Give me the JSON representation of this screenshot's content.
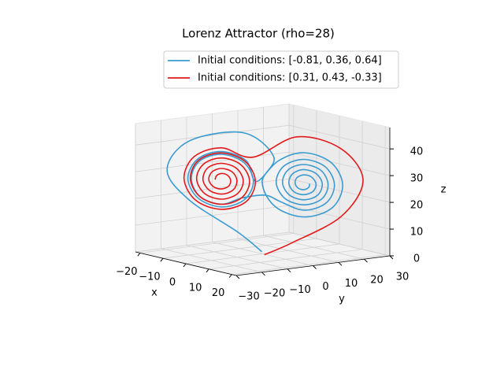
{
  "chart_data": {
    "type": "line3d",
    "title": "Lorenz Attractor (rho=28)",
    "xlabel": "x",
    "ylabel": "y",
    "zlabel": "z",
    "xlim": [
      -22,
      22
    ],
    "ylim": [
      -30,
      30
    ],
    "zlim": [
      0,
      48
    ],
    "xticks": [
      {
        "value": -20,
        "label": "−20"
      },
      {
        "value": -10,
        "label": "−10"
      },
      0,
      10,
      20
    ],
    "yticks": [
      {
        "value": -30,
        "label": "−30"
      },
      {
        "value": -20,
        "label": "−20"
      },
      {
        "value": -10,
        "label": "−10"
      },
      0,
      10,
      20,
      30
    ],
    "zticks": [
      0,
      10,
      20,
      30,
      40
    ],
    "grid": true,
    "legend": "upper center",
    "series": [
      {
        "name": "Initial conditions: [-0.81, 0.36, 0.64]",
        "color": "#3a9bd0",
        "x": [
          -0.8,
          -4,
          -12,
          -16,
          -12,
          -4,
          2.3,
          -0.1,
          2.5,
          8.5,
          14.3,
          16.5,
          14.1,
          8.5,
          3.2,
          -1.3,
          -3.4,
          -8.5,
          -13.4,
          -15.4,
          -13.3,
          -8.5,
          -3.8,
          -1.9,
          -3.9,
          -8.5,
          -13.0,
          -14.7,
          -12.9,
          -8.5,
          -4.2,
          0.5,
          3.7,
          8.5,
          13.1,
          14.8,
          12.9,
          8.5,
          4.4,
          2.8,
          4.6,
          8.5,
          12.2,
          13.5,
          12.0,
          8.5,
          5.3,
          4.1,
          5.5,
          8.5,
          11.3,
          12.3,
          11.1,
          8.5,
          6.2,
          5.4,
          6.4,
          8.5,
          10.4,
          11.0,
          10.1,
          8.5,
          7.1,
          6.7,
          7.3,
          8.5,
          9.5,
          9.7
        ],
        "y": [
          0.4,
          -6,
          -18,
          -23,
          -18,
          -4,
          2.3,
          -0.1,
          2.5,
          8.5,
          14.3,
          16.5,
          14.1,
          8.5,
          3.2,
          -1.3,
          -3.4,
          -8.5,
          -13.4,
          -15.4,
          -13.3,
          -8.5,
          -3.8,
          -1.9,
          -3.9,
          -8.5,
          -13.0,
          -14.7,
          -12.9,
          -8.5,
          -4.2,
          0.5,
          3.7,
          8.5,
          13.1,
          14.8,
          12.9,
          8.5,
          4.4,
          2.8,
          4.6,
          8.5,
          12.2,
          13.5,
          12.0,
          8.5,
          5.3,
          4.1,
          5.5,
          8.5,
          11.3,
          12.3,
          11.1,
          8.5,
          6.2,
          5.4,
          6.4,
          8.5,
          10.4,
          11.0,
          10.1,
          8.5,
          7.1,
          6.7,
          7.3,
          8.5,
          9.5,
          9.7
        ],
        "z": [
          0.6,
          8,
          20,
          31,
          42,
          45,
          36.4,
          27,
          18.0,
          14.5,
          18.3,
          27,
          35.3,
          38.5,
          35.0,
          27,
          34.6,
          37.6,
          34.4,
          27,
          19.8,
          16.9,
          19.9,
          27,
          33.9,
          36.6,
          33.7,
          27,
          20.4,
          17.9,
          20.6,
          22,
          19.8,
          17.0,
          20.1,
          27,
          33.6,
          36,
          33.2,
          27,
          21.1,
          19.0,
          21.5,
          27,
          32.2,
          34.1,
          31.9,
          27,
          22.5,
          20.9,
          22.8,
          27,
          30.8,
          32.2,
          30.5,
          27,
          23.8,
          22.8,
          24.2,
          27,
          29.5,
          30.2,
          29.1,
          27,
          25.2,
          24.7,
          25.6,
          27
        ]
      },
      {
        "name": "Initial conditions: [0.31, 0.43, -0.33]",
        "color": "#e31a1c",
        "x": [
          0.3,
          4,
          12,
          17,
          14,
          6,
          -2,
          -8.5,
          -14.1,
          -16.2,
          -13.8,
          -8.5,
          -3.4,
          -1.5,
          -3.6,
          -8.5,
          -13.2,
          -14.9,
          -12.9,
          -8.5,
          -4.3,
          -2.7,
          -4.5,
          -8.5,
          -12.2,
          -13.6,
          -12.0,
          -8.5,
          -5.2,
          -4.0,
          -5.4,
          -8.5,
          -11.3,
          -12.3,
          -11.1,
          -8.5,
          -6.1,
          -5.3,
          -6.3,
          -8.5,
          -10.4,
          -11.1,
          -10.2,
          -8.5,
          -7.0,
          -6.6,
          -7.3,
          -8.5,
          -9.5,
          -9.8
        ],
        "y": [
          0.4,
          8,
          20,
          24,
          18,
          8,
          -2,
          -8.5,
          -14.1,
          -16.2,
          -13.8,
          -8.5,
          -3.4,
          -1.5,
          -3.6,
          -8.5,
          -13.2,
          -14.9,
          -12.9,
          -8.5,
          -4.3,
          -2.7,
          -4.5,
          -8.5,
          -12.2,
          -13.6,
          -12.0,
          -8.5,
          -5.2,
          -4.0,
          -5.4,
          -8.5,
          -11.3,
          -12.3,
          -11.1,
          -8.5,
          -6.1,
          -5.3,
          -6.3,
          -8.5,
          -10.4,
          -11.1,
          -10.2,
          -8.5,
          -7.0,
          -6.6,
          -7.3,
          -8.5,
          -9.5,
          -9.8
        ],
        "z": [
          -0.3,
          4,
          14,
          28,
          40,
          44,
          36,
          39,
          35.3,
          27,
          19.0,
          16.0,
          19.3,
          27,
          34.3,
          37.1,
          34.0,
          27,
          20.4,
          17.9,
          20.7,
          27,
          33.0,
          35.2,
          32.6,
          27,
          21.7,
          19.8,
          22.1,
          27,
          31.6,
          33.2,
          31.3,
          27,
          23.1,
          21.7,
          23.4,
          27,
          30.2,
          31.3,
          29.9,
          27,
          24.4,
          23.6,
          24.8,
          27,
          28.9,
          29.4,
          28.5,
          27
        ]
      }
    ]
  }
}
